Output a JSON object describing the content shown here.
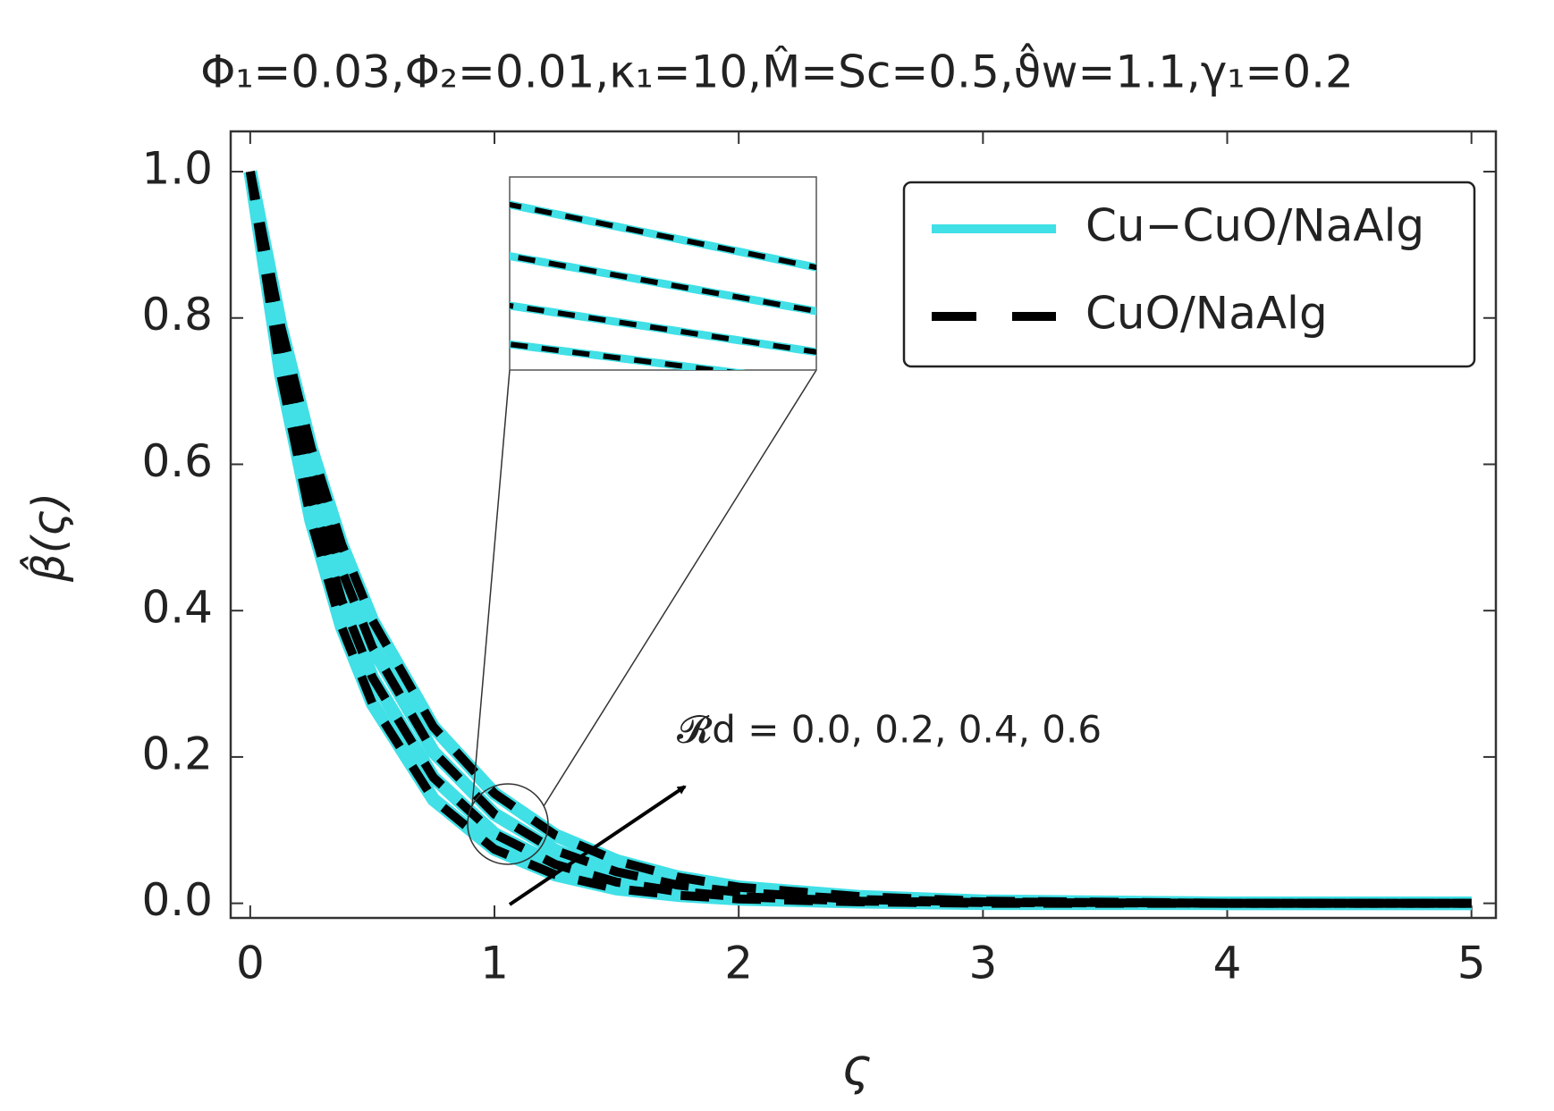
{
  "chart_data": {
    "type": "line",
    "title": "Φ₁=0.03,Φ₂=0.01,κ₁=10,M̂=Sc=0.5,ϑ̂w=1.1,γ₁=0.2",
    "x_label": "ς",
    "y_label": "β̂(ς)",
    "annotation": "𝓡d = 0.0, 0.2, 0.4, 0.6",
    "x": [
      0,
      0.125,
      0.25,
      0.375,
      0.5,
      0.75,
      1,
      1.25,
      1.5,
      1.75,
      2,
      2.5,
      3,
      4,
      5
    ],
    "series": [
      {
        "name": "Cu−CuO/NaAlg",
        "color": "#40e0e6",
        "dashed": false,
        "values": [
          [
            1,
            0.723,
            0.522,
            0.377,
            0.273,
            0.142,
            0.074,
            0.039,
            0.02,
            0.011,
            0.006,
            0.002,
            0,
            0,
            0
          ],
          [
            1,
            0.745,
            0.556,
            0.414,
            0.309,
            0.172,
            0.095,
            0.053,
            0.029,
            0.016,
            0.009,
            0.003,
            0.001,
            0,
            0
          ],
          [
            1,
            0.769,
            0.592,
            0.455,
            0.35,
            0.207,
            0.122,
            0.072,
            0.043,
            0.025,
            0.015,
            0.005,
            0.002,
            0,
            0
          ],
          [
            1,
            0.789,
            0.622,
            0.49,
            0.387,
            0.241,
            0.15,
            0.093,
            0.058,
            0.036,
            0.022,
            0.009,
            0.003,
            0,
            0
          ]
        ]
      },
      {
        "name": "CuO/NaAlg",
        "color": "#000000",
        "dashed": true,
        "values": [
          [
            1,
            0.723,
            0.522,
            0.377,
            0.273,
            0.142,
            0.074,
            0.039,
            0.02,
            0.011,
            0.006,
            0.002,
            0,
            0,
            0
          ],
          [
            1,
            0.745,
            0.556,
            0.414,
            0.309,
            0.172,
            0.095,
            0.053,
            0.029,
            0.016,
            0.009,
            0.003,
            0.001,
            0,
            0
          ],
          [
            1,
            0.769,
            0.592,
            0.455,
            0.35,
            0.207,
            0.122,
            0.072,
            0.043,
            0.025,
            0.015,
            0.005,
            0.002,
            0,
            0
          ],
          [
            1,
            0.789,
            0.622,
            0.49,
            0.387,
            0.241,
            0.15,
            0.093,
            0.058,
            0.036,
            0.022,
            0.009,
            0.003,
            0,
            0
          ]
        ]
      }
    ],
    "xlim": [
      -0.08,
      5.1
    ],
    "ylim": [
      -0.02,
      1.055
    ],
    "xticks": [
      0,
      1,
      2,
      3,
      4,
      5
    ],
    "yticks": [
      {
        "value": 0,
        "label": "0.0"
      },
      {
        "value": 0.2,
        "label": "0.2"
      },
      {
        "value": 0.4,
        "label": "0.4"
      },
      {
        "value": 0.6,
        "label": "0.6"
      },
      {
        "value": 0.8,
        "label": "0.8"
      },
      {
        "value": 1,
        "label": "1.0"
      }
    ],
    "grid": false,
    "legend": "top-right"
  }
}
